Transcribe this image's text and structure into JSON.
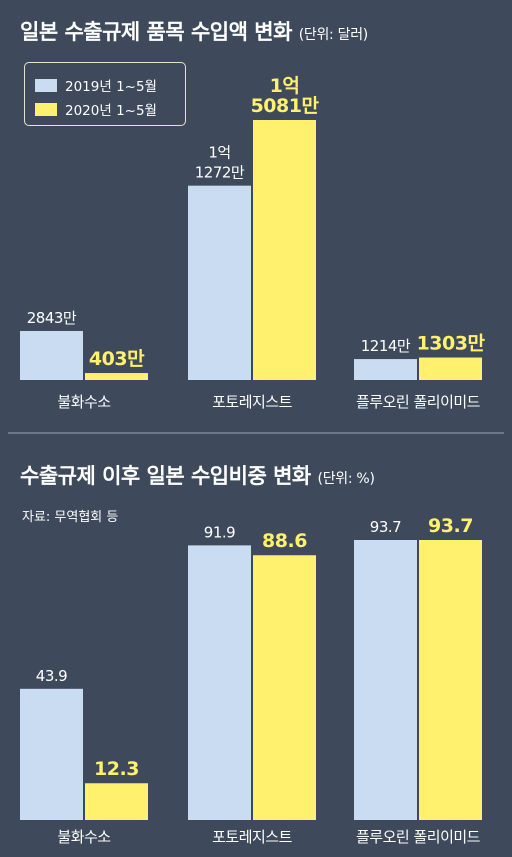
{
  "colors": {
    "background": "#3e4a5c",
    "series2019": "#c9dcf2",
    "series2020": "#fff06e",
    "text": "#ffffff"
  },
  "chart_data": [
    {
      "type": "bar",
      "title": "일본 수출규제 품목 수입액 변화",
      "unit_label": "(단위: 달러)",
      "categories": [
        "불화수소",
        "포토레지스트",
        "플루오린 폴리이미드"
      ],
      "series": [
        {
          "name": "2019년 1~5월",
          "values": [
            28430000,
            112720000,
            12140000
          ],
          "labels": [
            "2843만",
            "1억\n1272만",
            "1214만"
          ]
        },
        {
          "name": "2020년 1~5월",
          "values": [
            4030000,
            150810000,
            13030000
          ],
          "labels": [
            "403만",
            "1억\n5081만",
            "1303만"
          ]
        }
      ],
      "legend": "top-left"
    },
    {
      "type": "bar",
      "title": "수출규제 이후 일본 수입비중 변화",
      "unit_label": "(단위: %)",
      "source": "자료: 무역협회 등",
      "categories": [
        "불화수소",
        "포토레지스트",
        "플루오린 폴리이미드"
      ],
      "series": [
        {
          "name": "2019년 1~5월",
          "values": [
            43.9,
            91.9,
            93.7
          ],
          "labels": [
            "43.9",
            "91.9",
            "93.7"
          ]
        },
        {
          "name": "2020년 1~5월",
          "values": [
            12.3,
            88.6,
            93.7
          ],
          "labels": [
            "12.3",
            "88.6",
            "93.7"
          ]
        }
      ]
    }
  ]
}
